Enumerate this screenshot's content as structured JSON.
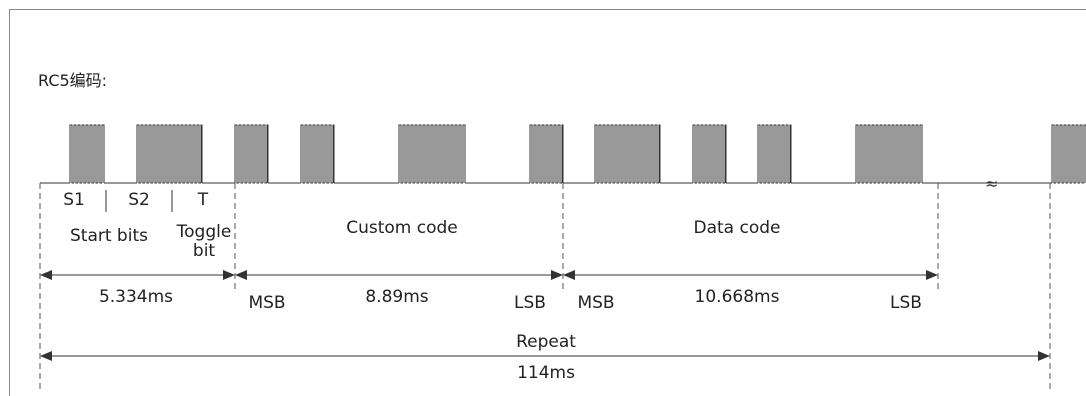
{
  "title": "RC5编码:",
  "labels": {
    "s1": "S1",
    "s2": "S2",
    "t": "T",
    "start_bits": "Start bits",
    "toggle_line1": "Toggle",
    "toggle_line2": "bit",
    "custom_code": "Custom code",
    "data_code": "Data code",
    "msb1": "MSB",
    "lsb1": "LSB",
    "msb2": "MSB",
    "lsb2": "LSB",
    "repeat": "Repeat"
  },
  "durations": {
    "start_toggle": "5.334ms",
    "custom": "8.89ms",
    "data": "10.668ms",
    "total": "114ms"
  },
  "break_symbol": "≈",
  "colors": {
    "line": "#333333",
    "dashed": "#555555",
    "text": "#222222"
  }
}
